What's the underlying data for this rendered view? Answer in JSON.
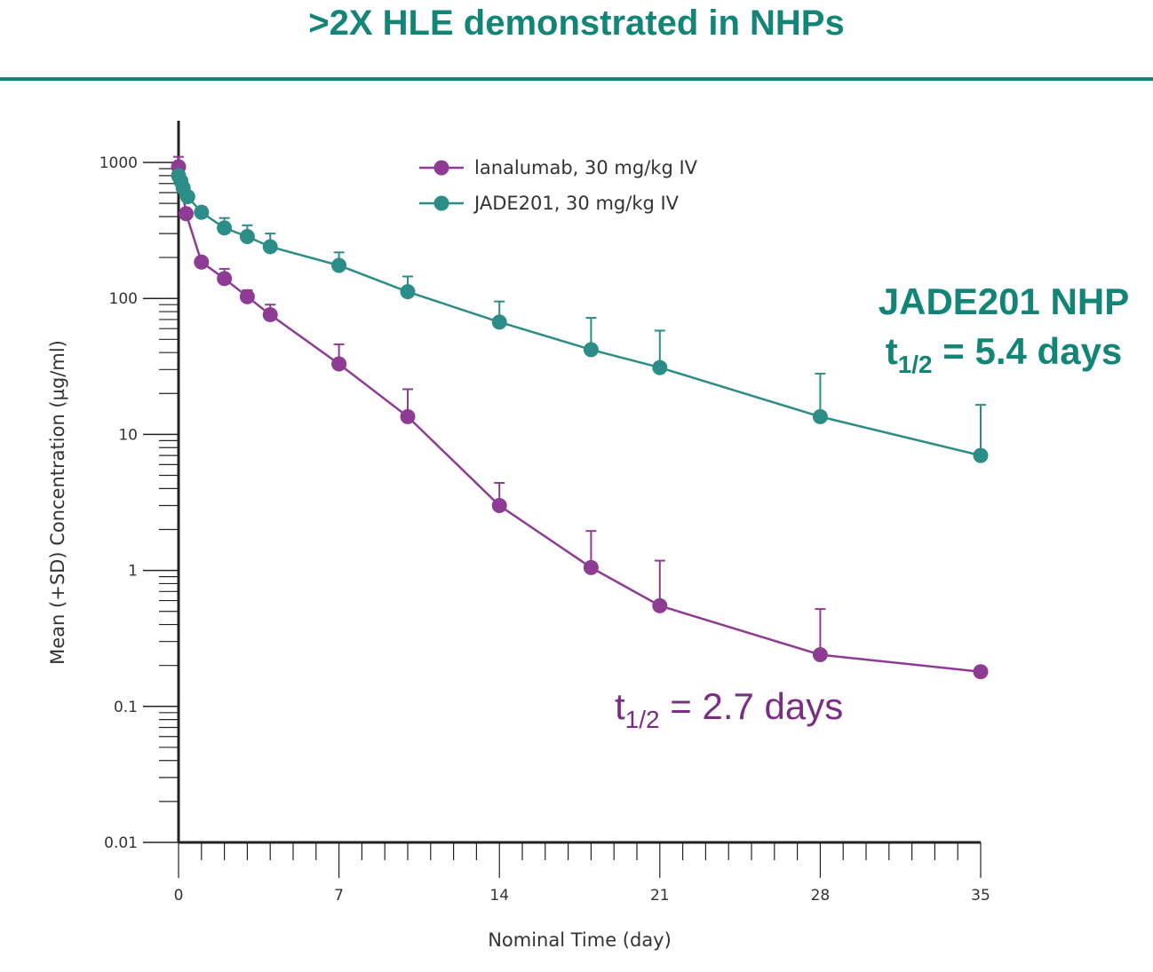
{
  "slide": {
    "title": ">2X HLE demonstrated in NHPs"
  },
  "colors": {
    "accent": "#138577",
    "lanalumab": "#8e3b94",
    "jade": "#2c8c87"
  },
  "chart_data": {
    "type": "line",
    "xlabel": "Nominal Time (day)",
    "ylabel": "Mean (+SD) Concentration (µg/ml)",
    "y_scale": "log",
    "xlim": [
      0,
      35
    ],
    "ylim": [
      0.01,
      1000
    ],
    "x_ticks": [
      0,
      7,
      14,
      21,
      28,
      35
    ],
    "x_tick_labels": [
      "0",
      "7",
      "14",
      "21",
      "28",
      "35"
    ],
    "y_ticks": [
      0.01,
      0.1,
      1,
      10,
      100,
      1000
    ],
    "y_tick_labels": [
      "0.01",
      "0.1",
      "1",
      "10",
      "100",
      "1000"
    ],
    "legend_position": "top-right",
    "grid": false,
    "series": [
      {
        "name": "lanalumab, 30 mg/kg IV",
        "color": "#8e3b94",
        "x": [
          0,
          0.33,
          1,
          2,
          3,
          4,
          7,
          10,
          14,
          18,
          21,
          28,
          35
        ],
        "y": [
          930,
          420,
          185,
          140,
          103,
          76,
          33,
          13.5,
          3,
          1.05,
          0.55,
          0.24,
          0.18
        ],
        "sd_upper": [
          1100,
          null,
          null,
          165,
          115,
          90,
          46,
          21.5,
          4.4,
          1.95,
          1.18,
          0.52,
          null
        ]
      },
      {
        "name": "JADE201, 30 mg/kg IV",
        "color": "#2c8c87",
        "x": [
          0,
          0.1,
          0.2,
          0.4,
          1,
          2,
          3,
          4,
          7,
          10,
          14,
          18,
          21,
          28,
          35
        ],
        "y": [
          800,
          730,
          650,
          560,
          430,
          330,
          285,
          240,
          175,
          112,
          67,
          42,
          31,
          13.5,
          7
        ],
        "sd_upper": [
          null,
          null,
          null,
          null,
          470,
          390,
          345,
          300,
          218,
          145,
          95,
          72,
          58,
          28,
          16.5
        ]
      }
    ],
    "annotations": [
      {
        "line1": "JADE201 NHP",
        "line2_main": "t",
        "line2_sub": "1/2",
        "line2_rest": " = 5.4 days"
      },
      {
        "line1": "",
        "line2_main": "t",
        "line2_sub": "1/2",
        "line2_rest": " = 2.7 days"
      }
    ]
  }
}
